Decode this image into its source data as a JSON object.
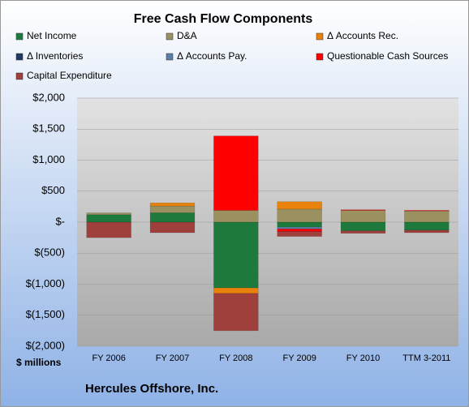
{
  "chart_data": {
    "type": "stacked-bar",
    "title": "Free Cash Flow Components",
    "ylabel": "$ millions",
    "footer": "Hercules Offshore, Inc.",
    "categories": [
      "FY 2006",
      "FY 2007",
      "FY 2008",
      "FY 2009",
      "FY 2010",
      "TTM 3-2011"
    ],
    "series": [
      {
        "name": "Net Income",
        "color": "#1e7a3c",
        "values": [
          120,
          150,
          -1060,
          -80,
          -140,
          -130
        ]
      },
      {
        "name": "D&A",
        "color": "#9a9060",
        "values": [
          30,
          110,
          190,
          210,
          190,
          180
        ]
      },
      {
        "name": "Δ Accounts Rec.",
        "color": "#e8820c",
        "values": [
          0,
          50,
          -90,
          120,
          0,
          0
        ]
      },
      {
        "name": "Δ Inventories",
        "color": "#1f3864",
        "values": [
          0,
          0,
          0,
          0,
          0,
          0
        ]
      },
      {
        "name": "Δ Accounts Pay.",
        "color": "#5b7ea8",
        "values": [
          0,
          0,
          0,
          -30,
          0,
          0
        ]
      },
      {
        "name": "Questionable Cash Sources",
        "color": "#ff0000",
        "values": [
          0,
          0,
          1200,
          -40,
          10,
          10
        ]
      },
      {
        "name": "Capital Expenditure",
        "color": "#a0403c",
        "values": [
          -250,
          -170,
          -600,
          -80,
          -40,
          -40
        ]
      }
    ],
    "ylim": [
      -2000,
      2000
    ],
    "yticks": [
      {
        "value": 2000,
        "label": "$2,000"
      },
      {
        "value": 1500,
        "label": "$1,500"
      },
      {
        "value": 1000,
        "label": "$1,000"
      },
      {
        "value": 500,
        "label": "$500"
      },
      {
        "value": 0,
        "label": "$-"
      },
      {
        "value": -500,
        "label": "$(500)"
      },
      {
        "value": -1000,
        "label": "$(1,000)"
      },
      {
        "value": -1500,
        "label": "$(1,500)"
      },
      {
        "value": -2000,
        "label": "$(2,000)"
      }
    ],
    "grid": true
  }
}
